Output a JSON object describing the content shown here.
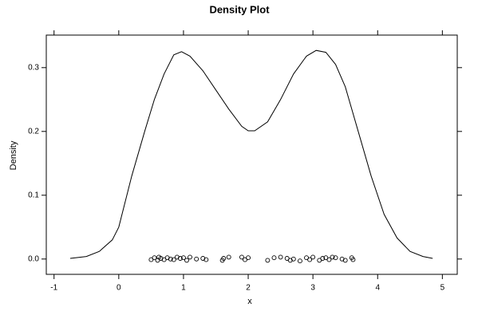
{
  "chart_data": {
    "type": "density",
    "title": "Density Plot",
    "xlabel": "x",
    "ylabel": "Density",
    "x": [
      -0.75,
      -0.5,
      -0.3,
      -0.1,
      0.0,
      0.2,
      0.4,
      0.55,
      0.7,
      0.85,
      0.97,
      1.1,
      1.3,
      1.5,
      1.7,
      1.9,
      2.0,
      2.1,
      2.3,
      2.5,
      2.7,
      2.9,
      3.05,
      3.2,
      3.35,
      3.5,
      3.7,
      3.9,
      4.1,
      4.3,
      4.5,
      4.7,
      4.85
    ],
    "values": [
      0.001,
      0.004,
      0.012,
      0.03,
      0.05,
      0.13,
      0.2,
      0.25,
      0.29,
      0.32,
      0.325,
      0.318,
      0.295,
      0.265,
      0.235,
      0.208,
      0.201,
      0.201,
      0.215,
      0.25,
      0.29,
      0.318,
      0.327,
      0.324,
      0.305,
      0.27,
      0.2,
      0.13,
      0.07,
      0.033,
      0.012,
      0.004,
      0.001
    ],
    "points": {
      "x": [
        0.5,
        0.55,
        0.6,
        0.62,
        0.65,
        0.7,
        0.75,
        0.8,
        0.85,
        0.9,
        0.95,
        1.0,
        1.05,
        1.1,
        1.2,
        1.3,
        1.35,
        1.6,
        1.62,
        1.7,
        1.9,
        1.95,
        2.0,
        2.3,
        2.4,
        2.5,
        2.6,
        2.65,
        2.7,
        2.8,
        2.9,
        2.95,
        3.0,
        3.1,
        3.15,
        3.2,
        3.25,
        3.3,
        3.35,
        3.45,
        3.5,
        3.6,
        3.62
      ],
      "y": [
        -0.001,
        0.002,
        -0.002,
        0.003,
        0.001,
        -0.001,
        0.002,
        0.0,
        -0.001,
        0.003,
        0.001,
        0.002,
        -0.002,
        0.003,
        0.0,
        0.001,
        -0.001,
        -0.002,
        0.001,
        0.003,
        0.003,
        -0.001,
        0.002,
        -0.002,
        0.002,
        0.003,
        0.001,
        -0.002,
        0.0,
        -0.003,
        0.002,
        -0.001,
        0.003,
        -0.002,
        0.001,
        0.002,
        -0.001,
        0.003,
        0.002,
        0.0,
        -0.002,
        0.002,
        -0.001
      ]
    },
    "xlim": [
      -1.12,
      5.23
    ],
    "ylim": [
      -0.024,
      0.351
    ],
    "xticks": [
      -1,
      0,
      1,
      2,
      3,
      4,
      5
    ],
    "yticks": [
      {
        "value": 0,
        "label": "0.0"
      },
      0.1,
      0.2,
      0.3
    ]
  }
}
